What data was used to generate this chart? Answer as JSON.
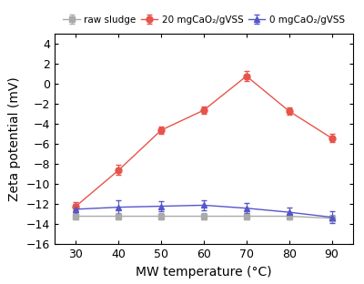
{
  "x": [
    30,
    40,
    50,
    60,
    70,
    80,
    90
  ],
  "raw_sludge_y": [
    -13.2,
    -13.2,
    -13.2,
    -13.2,
    -13.2,
    -13.2,
    -13.4
  ],
  "raw_sludge_err": [
    0.3,
    0.3,
    0.3,
    0.3,
    0.3,
    0.3,
    0.3
  ],
  "cao2_20_y": [
    -12.2,
    -8.6,
    -4.6,
    -2.6,
    0.8,
    -2.7,
    -5.4
  ],
  "cao2_20_err": [
    0.4,
    0.5,
    0.4,
    0.4,
    0.5,
    0.4,
    0.4
  ],
  "cao2_0_y": [
    -12.5,
    -12.3,
    -12.2,
    -12.1,
    -12.4,
    -12.8,
    -13.3
  ],
  "cao2_0_err": [
    0.5,
    0.7,
    0.5,
    0.5,
    0.5,
    0.5,
    0.6
  ],
  "raw_sludge_color": "#aaaaaa",
  "cao2_20_color": "#e8534a",
  "cao2_0_color": "#5555cc",
  "raw_sludge_label": "raw sludge",
  "cao2_20_label": "20 mgCaO₂/gVSS",
  "cao2_0_label": "0 mgCaO₂/gVSS",
  "xlabel": "MW temperature (°C)",
  "ylabel": "Zeta potential (mV)",
  "ylim": [
    -16,
    5
  ],
  "xlim": [
    25,
    95
  ],
  "yticks": [
    -16,
    -14,
    -12,
    -10,
    -8,
    -6,
    -4,
    -2,
    0,
    2,
    4
  ],
  "xticks": [
    30,
    40,
    50,
    60,
    70,
    80,
    90
  ],
  "background_color": "#ffffff"
}
